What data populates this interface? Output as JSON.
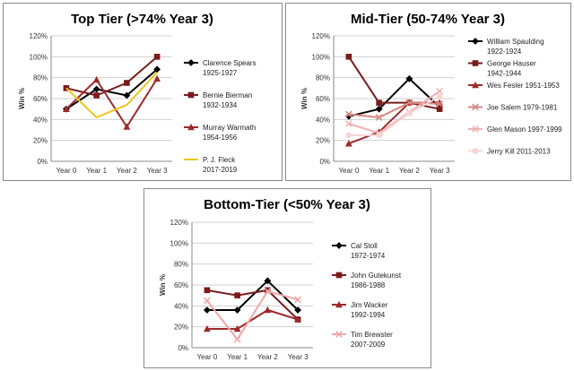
{
  "chart_data": [
    {
      "type": "line",
      "title": "Top Tier (>74% Year 3)",
      "xlabel": "",
      "ylabel": "Win %",
      "categories": [
        "Year 0",
        "Year 1",
        "Year 2",
        "Year 3"
      ],
      "ylim": [
        0,
        120
      ],
      "yticks": [
        "0%",
        "20%",
        "40%",
        "60%",
        "80%",
        "100%",
        "120%"
      ],
      "grid": true,
      "legend": "right",
      "series": [
        {
          "name": "Clarence Spears 1925-1927",
          "values": [
            50,
            69,
            63,
            88
          ],
          "color": "#000000",
          "marker": "diamond"
        },
        {
          "name": "Bernie Bierman 1932-1934",
          "values": [
            70,
            63,
            75,
            100
          ],
          "color": "#7a1c1c",
          "marker": "square"
        },
        {
          "name": "Murray Warmath 1954-1956",
          "values": [
            50,
            78,
            33,
            79
          ],
          "color": "#9c2a2a",
          "marker": "triangle"
        },
        {
          "name": "P. J. Fleck 2017-2019",
          "values": [
            70,
            42,
            54,
            85
          ],
          "color": "#f0c419",
          "marker": "none"
        }
      ]
    },
    {
      "type": "line",
      "title": "Mid-Tier (50-74% Year 3)",
      "xlabel": "",
      "ylabel": "Win %",
      "categories": [
        "Year 0",
        "Year 1",
        "Year 2",
        "Year 3"
      ],
      "ylim": [
        0,
        120
      ],
      "yticks": [
        "0%",
        "20%",
        "40%",
        "60%",
        "80%",
        "100%",
        "120%"
      ],
      "grid": true,
      "legend": "right",
      "series": [
        {
          "name": "William Spaulding 1922-1924",
          "values": [
            43,
            50,
            79,
            52
          ],
          "color": "#000000",
          "marker": "diamond"
        },
        {
          "name": "George Hauser 1942-1944",
          "values": [
            100,
            56,
            56,
            50
          ],
          "color": "#7a1c1c",
          "marker": "square"
        },
        {
          "name": "Wes Fesler 1951-1953",
          "values": [
            17,
            28,
            56,
            56
          ],
          "color": "#9c2a2a",
          "marker": "triangle"
        },
        {
          "name": "Joe Salem 1979-1981",
          "values": [
            45,
            42,
            56,
            55
          ],
          "color": "#d98880",
          "marker": "x"
        },
        {
          "name": "Glen Mason 1997-1999",
          "values": [
            36,
            27,
            47,
            67
          ],
          "color": "#f0b2b2",
          "marker": "x"
        },
        {
          "name": "Jerry Kill 2011-2013",
          "values": [
            25,
            25,
            46,
            62
          ],
          "color": "#f8d5d5",
          "marker": "circle"
        }
      ]
    },
    {
      "type": "line",
      "title": "Bottom-Tier (<50% Year 3)",
      "xlabel": "",
      "ylabel": "Win %",
      "categories": [
        "Year 0",
        "Year 1",
        "Year 2",
        "Year 3"
      ],
      "ylim": [
        0,
        120
      ],
      "yticks": [
        "0%",
        "20%",
        "40%",
        "60%",
        "80%",
        "100%",
        "120%"
      ],
      "grid": true,
      "legend": "right",
      "series": [
        {
          "name": "Cal Stoll 1972-1974",
          "values": [
            36,
            36,
            64,
            36
          ],
          "color": "#000000",
          "marker": "diamond"
        },
        {
          "name": "John Gutekunst 1986-1988",
          "values": [
            55,
            50,
            55,
            27
          ],
          "color": "#7a1c1c",
          "marker": "square"
        },
        {
          "name": "Jim Wacker 1992-1994",
          "values": [
            18,
            18,
            36,
            27
          ],
          "color": "#9c2a2a",
          "marker": "triangle"
        },
        {
          "name": "Tim Brewster 2007-2009",
          "values": [
            45,
            8,
            54,
            46
          ],
          "color": "#f0a8a8",
          "marker": "x"
        }
      ]
    }
  ]
}
